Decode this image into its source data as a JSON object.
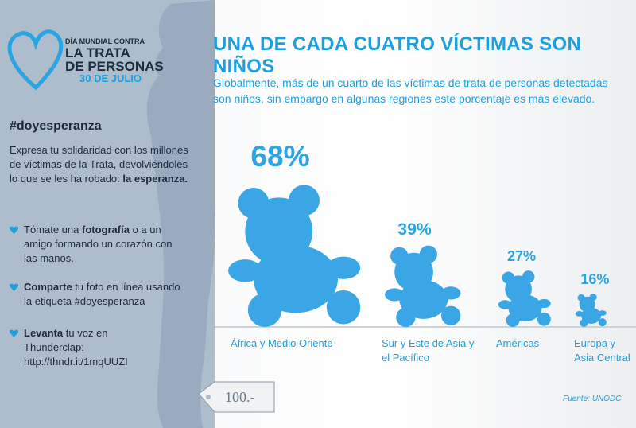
{
  "logo": {
    "line1": "DÍA MUNDIAL CONTRA",
    "line2": "LA TRATA",
    "line3": "DE PERSONAS",
    "date": "30 DE JULIO"
  },
  "hashtag": "#doyesperanza",
  "intro": [
    "Expresa tu solidaridad con los millones de víctimas de la Trata, devolviéndoles lo que se les ha robado: ",
    "la esperanza."
  ],
  "bullets": [
    [
      "Tómate una ",
      "fotografía",
      " o a un amigo formando un corazón con las manos."
    ],
    [
      "Comparte",
      " tu foto en línea usando la etiqueta #doyesperanza"
    ],
    [
      "Levanta",
      " tu voz en Thunderclap: http://thndr.it/1mqUUZI"
    ]
  ],
  "tag": "100.-",
  "chart_data": {
    "type": "pictogram",
    "title": "UNA DE CADA CUATRO VÍCTIMAS SON NIÑOS",
    "subtitle": "Globalmente, más de un cuarto de las víctimas de trata de personas detectadas son niños, sin embargo en algunas regiones este porcentaje es más elevado.",
    "categories": [
      "África y Medio Oriente",
      "Sur y Este de Asia y el Pacífico",
      "Américas",
      "Europa y Asia Central"
    ],
    "values": [
      68,
      39,
      27,
      16
    ],
    "value_labels": [
      "68%",
      "39%",
      "27%",
      "16%"
    ],
    "color": "#3aa6e6",
    "source": "Fuente: UNODC"
  }
}
